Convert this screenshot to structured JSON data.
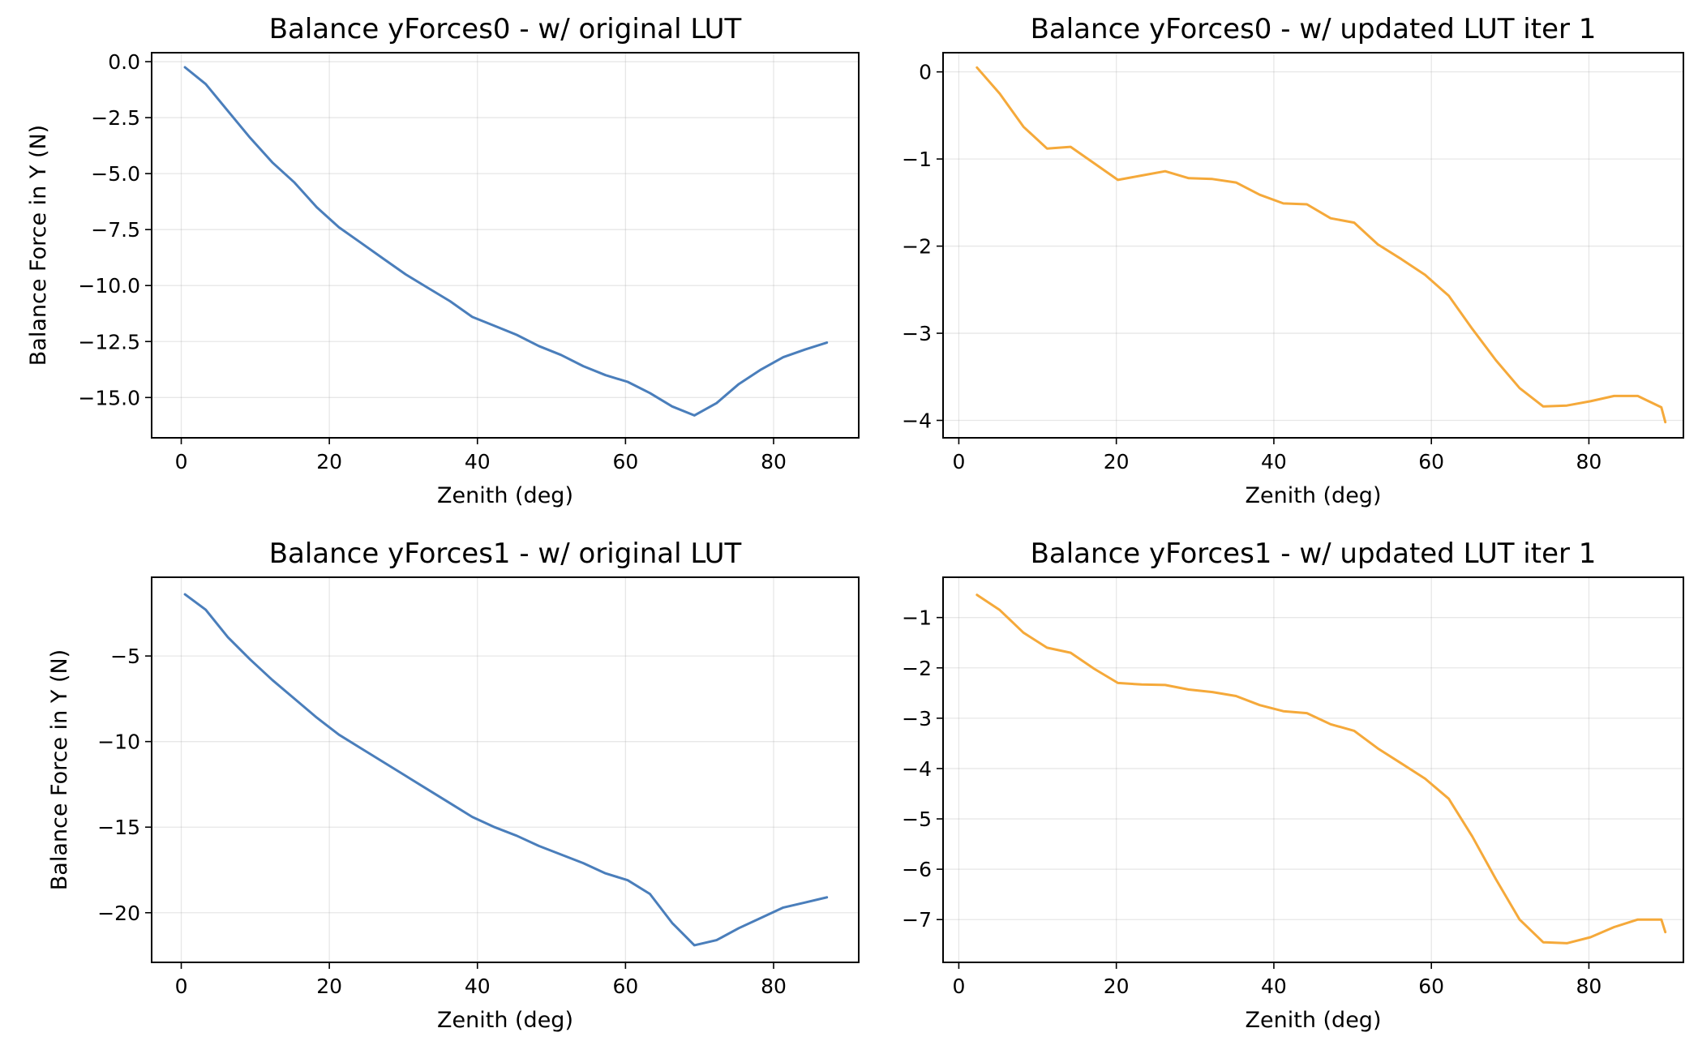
{
  "chart_data": [
    {
      "type": "line",
      "title": "Balance yForces0 - w/ original LUT",
      "xlabel": "Zenith (deg)",
      "ylabel": "Balance Force in Y (N)",
      "xlim": [
        -4,
        91.5
      ],
      "ylim": [
        -16.8,
        0.4
      ],
      "xticks": [
        0,
        20,
        40,
        60,
        80
      ],
      "xtick_labels": [
        "0",
        "20",
        "40",
        "60",
        "80"
      ],
      "yticks": [
        0,
        -2.5,
        -5,
        -7.5,
        -10,
        -12.5,
        -15
      ],
      "ytick_labels": [
        "0.0",
        "−2.5",
        "−5.0",
        "−7.5",
        "−10.0",
        "−12.5",
        "−15.0"
      ],
      "grid": true,
      "color": "#4a7ebb",
      "x": [
        0.5,
        3.3,
        6.3,
        9.3,
        12.3,
        15.3,
        18.3,
        21.3,
        24.3,
        27.3,
        30.3,
        33.3,
        36.3,
        39.3,
        42.3,
        45.3,
        48.3,
        51.3,
        54.3,
        57.3,
        60.3,
        63.3,
        66.3,
        69.3,
        72.3,
        75.3,
        78.3,
        81.3,
        84.3,
        87.2
      ],
      "y": [
        -0.25,
        -1.0,
        -2.2,
        -3.4,
        -4.5,
        -5.4,
        -6.5,
        -7.4,
        -8.1,
        -8.8,
        -9.5,
        -10.1,
        -10.7,
        -11.4,
        -11.8,
        -12.2,
        -12.7,
        -13.1,
        -13.6,
        -14.0,
        -14.3,
        -14.8,
        -15.4,
        -15.8,
        -15.25,
        -14.4,
        -13.75,
        -13.2,
        -12.85,
        -12.55
      ]
    },
    {
      "type": "line",
      "title": "Balance yForces0 - w/ updated LUT iter 1",
      "xlabel": "Zenith (deg)",
      "ylabel": "",
      "xlim": [
        -2,
        92
      ],
      "ylim": [
        -4.2,
        0.22
      ],
      "xticks": [
        0,
        20,
        40,
        60,
        80
      ],
      "xtick_labels": [
        "0",
        "20",
        "40",
        "60",
        "80"
      ],
      "yticks": [
        0,
        -1,
        -2,
        -3,
        -4
      ],
      "ytick_labels": [
        "0",
        "−1",
        "−2",
        "−3",
        "−4"
      ],
      "grid": true,
      "color": "#f5a93a",
      "x": [
        2.3,
        5.2,
        8.2,
        11.2,
        14.2,
        17.2,
        20.2,
        23.2,
        26.2,
        29.2,
        32.2,
        35.2,
        38.2,
        41.2,
        44.2,
        47.2,
        50.2,
        53.2,
        56.2,
        59.2,
        62.2,
        65.2,
        68.2,
        71.2,
        74.2,
        77.2,
        80.2,
        83.2,
        86.2,
        89.2,
        89.7
      ],
      "y": [
        0.05,
        -0.25,
        -0.63,
        -0.88,
        -0.86,
        -1.05,
        -1.24,
        -1.19,
        -1.14,
        -1.22,
        -1.23,
        -1.27,
        -1.41,
        -1.51,
        -1.52,
        -1.68,
        -1.73,
        -1.98,
        -2.15,
        -2.33,
        -2.57,
        -2.95,
        -3.31,
        -3.63,
        -3.84,
        -3.83,
        -3.78,
        -3.72,
        -3.72,
        -3.85,
        -4.02
      ]
    },
    {
      "type": "line",
      "title": "Balance yForces1 - w/ original LUT",
      "xlabel": "Zenith (deg)",
      "ylabel": "Balance Force in Y (N)",
      "xlim": [
        -4,
        91.5
      ],
      "ylim": [
        -22.9,
        -0.4
      ],
      "xticks": [
        0,
        20,
        40,
        60,
        80
      ],
      "xtick_labels": [
        "0",
        "20",
        "40",
        "60",
        "80"
      ],
      "yticks": [
        -5,
        -10,
        -15,
        -20
      ],
      "ytick_labels": [
        "−5",
        "−10",
        "−15",
        "−20"
      ],
      "grid": true,
      "color": "#4a7ebb",
      "x": [
        0.5,
        3.3,
        6.3,
        9.3,
        12.3,
        15.3,
        18.3,
        21.3,
        24.3,
        27.3,
        30.3,
        33.3,
        36.3,
        39.3,
        42.3,
        45.3,
        48.3,
        51.3,
        54.3,
        57.3,
        60.3,
        63.3,
        66.3,
        69.3,
        72.3,
        75.3,
        78.3,
        81.3,
        84.3,
        87.2
      ],
      "y": [
        -1.4,
        -2.3,
        -3.9,
        -5.2,
        -6.4,
        -7.5,
        -8.6,
        -9.6,
        -10.4,
        -11.2,
        -12.0,
        -12.8,
        -13.6,
        -14.4,
        -15.0,
        -15.5,
        -16.1,
        -16.6,
        -17.1,
        -17.7,
        -18.1,
        -18.9,
        -20.6,
        -21.9,
        -21.6,
        -20.9,
        -20.3,
        -19.7,
        -19.4,
        -19.1
      ]
    },
    {
      "type": "line",
      "title": "Balance yForces1 - w/ updated LUT iter 1",
      "xlabel": "Zenith (deg)",
      "ylabel": "",
      "xlim": [
        -2,
        92
      ],
      "ylim": [
        -7.85,
        -0.2
      ],
      "xticks": [
        0,
        20,
        40,
        60,
        80
      ],
      "xtick_labels": [
        "0",
        "20",
        "40",
        "60",
        "80"
      ],
      "yticks": [
        -1,
        -2,
        -3,
        -4,
        -5,
        -6,
        -7
      ],
      "ytick_labels": [
        "−1",
        "−2",
        "−3",
        "−4",
        "−5",
        "−6",
        "−7"
      ],
      "grid": true,
      "color": "#f5a93a",
      "x": [
        2.3,
        5.2,
        8.2,
        11.2,
        14.2,
        17.2,
        20.2,
        23.2,
        26.2,
        29.2,
        32.2,
        35.2,
        38.2,
        41.2,
        44.2,
        47.2,
        50.2,
        53.2,
        56.2,
        59.2,
        62.2,
        65.2,
        68.2,
        71.2,
        74.2,
        77.2,
        80.2,
        83.2,
        86.2,
        89.2,
        89.7
      ],
      "y": [
        -0.55,
        -0.85,
        -1.3,
        -1.6,
        -1.7,
        -2.02,
        -2.3,
        -2.33,
        -2.34,
        -2.43,
        -2.48,
        -2.56,
        -2.74,
        -2.86,
        -2.9,
        -3.12,
        -3.25,
        -3.6,
        -3.9,
        -4.2,
        -4.6,
        -5.35,
        -6.2,
        -7.0,
        -7.45,
        -7.47,
        -7.35,
        -7.15,
        -7.0,
        -7.0,
        -7.25
      ]
    }
  ]
}
